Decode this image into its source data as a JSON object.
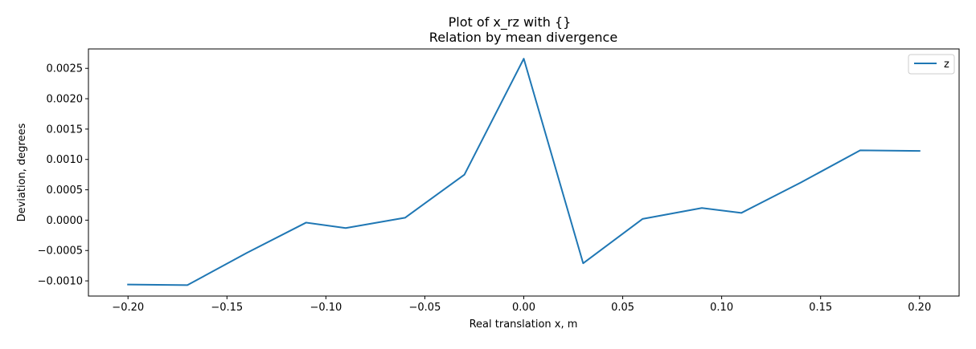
{
  "chart_data": {
    "type": "line",
    "suptitle": "Plot of x_rz with {}",
    "title": "Relation by mean divergence",
    "xlabel": "Real translation x, m",
    "ylabel": "Deviation, degrees",
    "xlim": [
      -0.22,
      0.22
    ],
    "ylim": [
      -0.00125,
      0.00282
    ],
    "x_ticks": [
      -0.2,
      -0.15,
      -0.1,
      -0.05,
      0.0,
      0.05,
      0.1,
      0.15,
      0.2
    ],
    "x_tick_labels": [
      "−0.20",
      "−0.15",
      "−0.10",
      "−0.05",
      "0.00",
      "0.05",
      "0.10",
      "0.15",
      "0.20"
    ],
    "y_ticks": [
      -0.001,
      -0.0005,
      0.0,
      0.0005,
      0.001,
      0.0015,
      0.002,
      0.0025
    ],
    "y_tick_labels": [
      "−0.0010",
      "−0.0005",
      "0.0000",
      "0.0005",
      "0.0010",
      "0.0015",
      "0.0020",
      "0.0025"
    ],
    "grid": false,
    "legend_position": "top-right",
    "series": [
      {
        "name": "z",
        "color": "#1f77b4",
        "x": [
          -0.2,
          -0.17,
          -0.14,
          -0.11,
          -0.09,
          -0.06,
          -0.03,
          0.0,
          0.03,
          0.06,
          0.09,
          0.11,
          0.14,
          0.17,
          0.2
        ],
        "y": [
          -0.00106,
          -0.00107,
          -0.00054,
          -4e-05,
          -0.00013,
          4e-05,
          0.00075,
          0.00266,
          -0.00071,
          2e-05,
          0.0002,
          0.00012,
          0.00062,
          0.00115,
          0.00114
        ]
      }
    ]
  }
}
